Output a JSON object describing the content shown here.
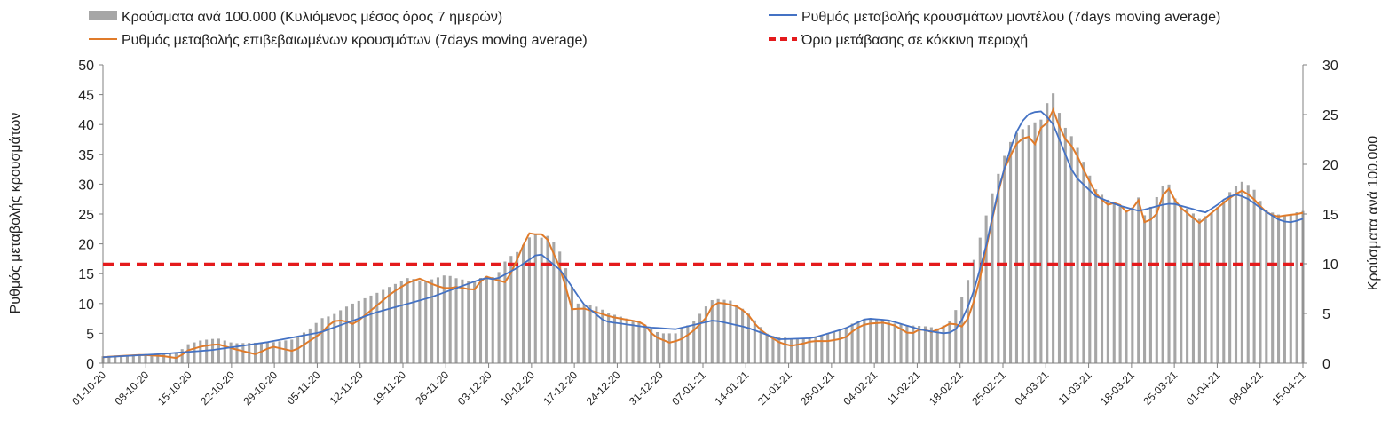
{
  "chart_data": {
    "type": "bar+line",
    "legend": {
      "bars": "Κρούσματα ανά 100.000 (Κυλιόμενος μέσος όρος 7 ημερών)",
      "confirmed": "Ρυθμός μεταβολής επιβεβαιωμένων κρουσμάτων (7days moving average)",
      "model": "Ρυθμός μεταβολής κρουσμάτων μοντέλου (7days moving average)",
      "threshold": "Όριο μετάβασης σε κόκκινη περιοχή",
      "placement": "top"
    },
    "ylabel_left": "Ρυθμός μεταβολής κρουσμάτων",
    "ylabel_right": "Κρούσματα ανά 100.000",
    "ylim_left": [
      0,
      50
    ],
    "ylim_right": [
      0,
      30
    ],
    "yticks_left": [
      "0",
      "5",
      "10",
      "15",
      "20",
      "25",
      "30",
      "35",
      "40",
      "45",
      "50"
    ],
    "yticks_right": [
      "0",
      "5",
      "10",
      "15",
      "20",
      "25",
      "30"
    ],
    "x_tick_labels": [
      "01-10-20",
      "08-10-20",
      "15-10-20",
      "22-10-20",
      "29-10-20",
      "05-11-20",
      "12-11-20",
      "19-11-20",
      "26-11-20",
      "03-12-20",
      "10-12-20",
      "17-12-20",
      "24-12-20",
      "31-12-20",
      "07-01-21",
      "14-01-21",
      "21-01-21",
      "28-01-21",
      "04-02-21",
      "11-02-21",
      "18-02-21",
      "25-02-21",
      "04-03-21",
      "11-03-21",
      "18-03-21",
      "25-03-21",
      "01-04-21",
      "08-04-21",
      "15-04-21"
    ],
    "x_start": "01-10-20",
    "x_end": "15-04-21",
    "threshold_left": 16.6,
    "colors": {
      "bars": "#a6a6a6",
      "confirmed": "#e07b2a",
      "model": "#4472c4",
      "threshold": "#e41a1c"
    },
    "grid": false,
    "keyframes_bars_right_axis": [
      [
        0,
        0.7
      ],
      [
        7,
        0.9
      ],
      [
        14,
        1.0
      ],
      [
        15,
        1.8
      ],
      [
        18,
        2.3
      ],
      [
        21,
        2.5
      ],
      [
        24,
        2.0
      ],
      [
        31,
        2.1
      ],
      [
        35,
        2.4
      ],
      [
        38,
        3.5
      ],
      [
        40,
        4.5
      ],
      [
        42,
        4.8
      ],
      [
        45,
        5.8
      ],
      [
        50,
        7.0
      ],
      [
        53,
        7.8
      ],
      [
        56,
        8.6
      ],
      [
        59,
        8.2
      ],
      [
        63,
        8.9
      ],
      [
        65,
        8.5
      ],
      [
        68,
        8.2
      ],
      [
        70,
        8.8
      ],
      [
        72,
        8.6
      ],
      [
        74,
        10.5
      ],
      [
        76,
        11.2
      ],
      [
        79,
        13.2
      ],
      [
        80,
        12.5
      ],
      [
        81,
        12.8
      ],
      [
        82,
        12.8
      ],
      [
        84,
        11.0
      ],
      [
        87,
        6.0
      ],
      [
        90,
        5.8
      ],
      [
        93,
        5.0
      ],
      [
        96,
        4.5
      ],
      [
        99,
        4.0
      ],
      [
        102,
        3.0
      ],
      [
        105,
        3.0
      ],
      [
        106,
        3.5
      ],
      [
        108,
        4.0
      ],
      [
        111,
        6.0
      ],
      [
        112,
        6.5
      ],
      [
        115,
        6.3
      ],
      [
        118,
        5.2
      ],
      [
        120,
        4.0
      ],
      [
        122,
        2.8
      ],
      [
        126,
        2.5
      ],
      [
        129,
        2.5
      ],
      [
        133,
        3.0
      ],
      [
        136,
        3.5
      ],
      [
        138,
        4.2
      ],
      [
        140,
        4.4
      ],
      [
        143,
        4.4
      ],
      [
        145,
        4.0
      ],
      [
        148,
        3.8
      ],
      [
        151,
        3.7
      ],
      [
        153,
        3.5
      ],
      [
        155,
        4.0
      ],
      [
        157,
        6.0
      ],
      [
        159,
        9.0
      ],
      [
        161,
        13.0
      ],
      [
        163,
        17.0
      ],
      [
        165,
        20.5
      ],
      [
        167,
        23.0
      ],
      [
        170,
        24.0
      ],
      [
        172,
        24.5
      ],
      [
        174,
        27.5
      ],
      [
        176,
        24.0
      ],
      [
        178,
        22.5
      ],
      [
        180,
        20.0
      ],
      [
        182,
        17.5
      ],
      [
        184,
        16.5
      ],
      [
        186,
        16.0
      ],
      [
        188,
        15.0
      ],
      [
        190,
        16.8
      ],
      [
        191,
        14.8
      ],
      [
        193,
        16.5
      ],
      [
        195,
        18.5
      ],
      [
        197,
        16.0
      ],
      [
        199,
        15.5
      ],
      [
        201,
        14.5
      ],
      [
        203,
        15.0
      ],
      [
        205,
        16.0
      ],
      [
        207,
        17.5
      ],
      [
        209,
        18.3
      ],
      [
        211,
        17.5
      ],
      [
        213,
        15.5
      ],
      [
        215,
        15.0
      ],
      [
        217,
        14.8
      ],
      [
        219,
        15.2
      ],
      [
        220,
        15.3
      ]
    ],
    "keyframes_confirmed_left_axis": [
      [
        0,
        1.0
      ],
      [
        3,
        1.2
      ],
      [
        7,
        1.4
      ],
      [
        11,
        1.2
      ],
      [
        14,
        0.8
      ],
      [
        15,
        2.0
      ],
      [
        18,
        2.8
      ],
      [
        21,
        3.2
      ],
      [
        24,
        2.4
      ],
      [
        28,
        1.5
      ],
      [
        31,
        2.8
      ],
      [
        35,
        2.0
      ],
      [
        38,
        3.8
      ],
      [
        40,
        5.0
      ],
      [
        42,
        7.0
      ],
      [
        44,
        7.2
      ],
      [
        46,
        6.5
      ],
      [
        50,
        9.5
      ],
      [
        53,
        11.8
      ],
      [
        56,
        13.5
      ],
      [
        58,
        14.2
      ],
      [
        61,
        13.0
      ],
      [
        63,
        12.5
      ],
      [
        65,
        12.8
      ],
      [
        68,
        12.2
      ],
      [
        70,
        14.6
      ],
      [
        72,
        14.0
      ],
      [
        74,
        13.5
      ],
      [
        76,
        17.5
      ],
      [
        78,
        21.8
      ],
      [
        80,
        21.5
      ],
      [
        81,
        21.8
      ],
      [
        84,
        15.5
      ],
      [
        86,
        9.0
      ],
      [
        88,
        9.2
      ],
      [
        91,
        8.4
      ],
      [
        93,
        7.8
      ],
      [
        96,
        7.3
      ],
      [
        99,
        6.8
      ],
      [
        101,
        4.5
      ],
      [
        104,
        3.4
      ],
      [
        106,
        4.0
      ],
      [
        108,
        5.2
      ],
      [
        111,
        8.0
      ],
      [
        112,
        10.2
      ],
      [
        114,
        10.0
      ],
      [
        116,
        9.6
      ],
      [
        118,
        8.5
      ],
      [
        120,
        6.0
      ],
      [
        122,
        4.6
      ],
      [
        124,
        3.5
      ],
      [
        126,
        2.9
      ],
      [
        128,
        3.2
      ],
      [
        130,
        3.7
      ],
      [
        133,
        3.7
      ],
      [
        136,
        4.2
      ],
      [
        138,
        5.8
      ],
      [
        140,
        6.6
      ],
      [
        143,
        6.8
      ],
      [
        145,
        6.4
      ],
      [
        148,
        4.8
      ],
      [
        150,
        5.8
      ],
      [
        152,
        5.2
      ],
      [
        154,
        6.0
      ],
      [
        156,
        7.0
      ],
      [
        157,
        5.6
      ],
      [
        159,
        8.0
      ],
      [
        161,
        15.0
      ],
      [
        163,
        24.0
      ],
      [
        165,
        32.0
      ],
      [
        167,
        36.0
      ],
      [
        168,
        37.5
      ],
      [
        170,
        38.0
      ],
      [
        171,
        36.5
      ],
      [
        172,
        39.5
      ],
      [
        173,
        40.0
      ],
      [
        174,
        43.0
      ],
      [
        175,
        40.5
      ],
      [
        176,
        38.0
      ],
      [
        178,
        36.0
      ],
      [
        180,
        32.0
      ],
      [
        182,
        28.5
      ],
      [
        184,
        26.5
      ],
      [
        186,
        27.0
      ],
      [
        188,
        25.0
      ],
      [
        190,
        27.5
      ],
      [
        191,
        23.5
      ],
      [
        193,
        24.5
      ],
      [
        195,
        30.0
      ],
      [
        197,
        26.5
      ],
      [
        199,
        25.0
      ],
      [
        201,
        23.5
      ],
      [
        203,
        25.0
      ],
      [
        205,
        26.5
      ],
      [
        207,
        28.0
      ],
      [
        209,
        29.0
      ],
      [
        211,
        27.5
      ],
      [
        213,
        25.5
      ],
      [
        215,
        24.5
      ],
      [
        217,
        24.8
      ],
      [
        219,
        25.0
      ],
      [
        220,
        25.2
      ]
    ],
    "keyframes_model_left_axis": [
      [
        0,
        1.0
      ],
      [
        10,
        1.5
      ],
      [
        20,
        2.2
      ],
      [
        30,
        3.5
      ],
      [
        40,
        5.2
      ],
      [
        50,
        8.5
      ],
      [
        60,
        11.0
      ],
      [
        70,
        14.3
      ],
      [
        72,
        14.0
      ],
      [
        76,
        16.0
      ],
      [
        80,
        18.5
      ],
      [
        84,
        15.5
      ],
      [
        88,
        10.0
      ],
      [
        92,
        7.0
      ],
      [
        100,
        6.0
      ],
      [
        105,
        5.7
      ],
      [
        112,
        7.2
      ],
      [
        118,
        6.0
      ],
      [
        124,
        4.0
      ],
      [
        130,
        4.2
      ],
      [
        136,
        5.8
      ],
      [
        140,
        7.5
      ],
      [
        144,
        7.2
      ],
      [
        150,
        5.6
      ],
      [
        154,
        5.0
      ],
      [
        156,
        5.2
      ],
      [
        158,
        8.0
      ],
      [
        160,
        13.0
      ],
      [
        162,
        20.0
      ],
      [
        164,
        28.5
      ],
      [
        166,
        35.0
      ],
      [
        168,
        40.0
      ],
      [
        170,
        42.0
      ],
      [
        172,
        42.2
      ],
      [
        174,
        40.5
      ],
      [
        176,
        36.0
      ],
      [
        178,
        31.5
      ],
      [
        182,
        28.0
      ],
      [
        186,
        26.5
      ],
      [
        190,
        25.5
      ],
      [
        194,
        26.5
      ],
      [
        196,
        26.8
      ],
      [
        200,
        25.8
      ],
      [
        202,
        25.2
      ],
      [
        204,
        26.3
      ],
      [
        206,
        27.8
      ],
      [
        208,
        28.3
      ],
      [
        210,
        27.5
      ],
      [
        213,
        25.5
      ],
      [
        216,
        23.8
      ],
      [
        218,
        23.6
      ],
      [
        220,
        24.2
      ]
    ]
  }
}
